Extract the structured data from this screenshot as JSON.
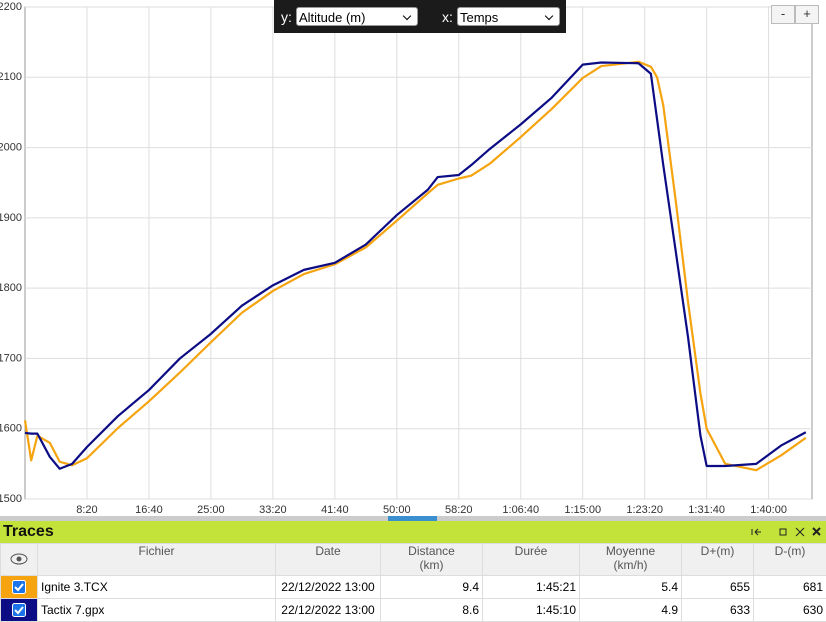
{
  "chart_data": {
    "type": "line",
    "xlim": [
      0,
      6350
    ],
    "ylim": [
      1500,
      2200
    ],
    "yticks": [
      1500,
      1600,
      1700,
      1800,
      1900,
      2000,
      2100,
      2200
    ],
    "xticks": [
      {
        "value": 500,
        "label": "8:20"
      },
      {
        "value": 1000,
        "label": "16:40"
      },
      {
        "value": 1500,
        "label": "25:00"
      },
      {
        "value": 2000,
        "label": "33:20"
      },
      {
        "value": 2500,
        "label": "41:40"
      },
      {
        "value": 3000,
        "label": "50:00"
      },
      {
        "value": 3500,
        "label": "58:20"
      },
      {
        "value": 4000,
        "label": "1:06:40"
      },
      {
        "value": 4500,
        "label": "1:15:00"
      },
      {
        "value": 5000,
        "label": "1:23:20"
      },
      {
        "value": 5500,
        "label": "1:31:40"
      },
      {
        "value": 6000,
        "label": "1:40:00"
      }
    ],
    "grid": true,
    "x": [
      0,
      50,
      100,
      200,
      280,
      380,
      500,
      750,
      1000,
      1250,
      1500,
      1750,
      2000,
      2250,
      2500,
      2750,
      3000,
      3250,
      3330,
      3500,
      3600,
      3750,
      4000,
      4250,
      4500,
      4650,
      4950,
      5050,
      5100,
      5150,
      5250,
      5350,
      5450,
      5500,
      5650,
      5900,
      6100,
      6300
    ],
    "series": [
      {
        "name": "Ignite 3.TCX",
        "color": "#f5a40f",
        "values": [
          1612,
          1555,
          1590,
          1580,
          1553,
          1548,
          1558,
          1601,
          1639,
          1680,
          1723,
          1765,
          1796,
          1820,
          1834,
          1858,
          1896,
          1935,
          1947,
          1956,
          1960,
          1977,
          2015,
          2055,
          2099,
          2116,
          2122,
          2115,
          2100,
          2060,
          1925,
          1780,
          1650,
          1600,
          1550,
          1541,
          1562,
          1587
        ]
      },
      {
        "name": "Tactix 7.gpx",
        "color": "#0c0c85",
        "values": [
          1594,
          1593,
          1593,
          1560,
          1543,
          1550,
          1574,
          1618,
          1655,
          1700,
          1735,
          1775,
          1804,
          1826,
          1836,
          1862,
          1904,
          1940,
          1958,
          1961,
          1975,
          1998,
          2033,
          2071,
          2118,
          2121,
          2120,
          2105,
          2040,
          1975,
          1853,
          1730,
          1590,
          1547,
          1547,
          1550,
          1576,
          1595
        ]
      }
    ]
  },
  "axis_controls": {
    "y_label": "y:",
    "y_value": "Altitude (m)",
    "x_label": "x:",
    "x_value": "Temps"
  },
  "zoom": [
    "-",
    "+"
  ],
  "traces_panel": {
    "title": "Traces",
    "columns": [
      {
        "label": "Fichier"
      },
      {
        "label": "Date"
      },
      {
        "label": "Distance",
        "unit": "(km)"
      },
      {
        "label": "Durée"
      },
      {
        "label": "Moyenne",
        "unit": "(km/h)"
      },
      {
        "label": "D+(m)"
      },
      {
        "label": "D-(m)"
      }
    ],
    "rows": [
      [
        "Ignite 3.TCX",
        "22/12/2022 13:00",
        9.4,
        "1:45:21",
        5.4,
        655,
        681
      ],
      [
        "Tactix 7.gpx",
        "22/12/2022 13:00",
        8.6,
        "1:45:10",
        4.9,
        633,
        630
      ]
    ]
  }
}
